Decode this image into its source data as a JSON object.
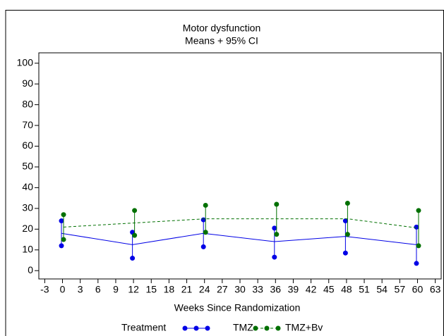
{
  "chart_data": {
    "type": "line",
    "title": "Motor dysfunction",
    "subtitle": "Means + 95% CI",
    "x_label": "Weeks Since Randomization",
    "legend_title": "Treatment",
    "x": [
      0,
      12,
      24,
      36,
      48,
      60
    ],
    "xlim": [
      -4,
      64
    ],
    "xticks": [
      -3,
      0,
      3,
      6,
      9,
      12,
      15,
      18,
      21,
      24,
      27,
      30,
      33,
      36,
      39,
      42,
      45,
      48,
      51,
      54,
      57,
      60,
      63
    ],
    "ylim": [
      -4,
      105
    ],
    "yticks": [
      0,
      10,
      20,
      30,
      40,
      50,
      60,
      70,
      80,
      90,
      100
    ],
    "series": [
      {
        "name": "TMZ",
        "color": "#0000e6",
        "line_style": "solid",
        "values": [
          18,
          12.5,
          18,
          14,
          16.5,
          12.5
        ],
        "lower": [
          12,
          6,
          11.5,
          6.5,
          8.5,
          3.5
        ],
        "upper": [
          24,
          18.5,
          24.5,
          20.5,
          24,
          21
        ]
      },
      {
        "name": "TMZ+Bv",
        "color": "#007000",
        "line_style": "dashed",
        "values": [
          21,
          23,
          25,
          25,
          25,
          20.5
        ],
        "lower": [
          15,
          17,
          18.5,
          17.5,
          17.5,
          12
        ],
        "upper": [
          27,
          29,
          31.5,
          32,
          32.5,
          29
        ]
      }
    ]
  }
}
